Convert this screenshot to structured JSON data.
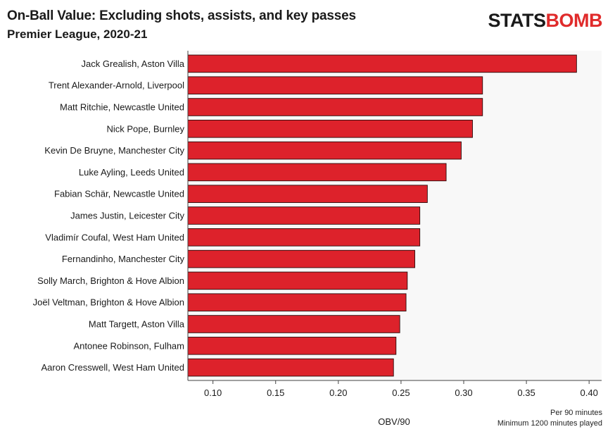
{
  "header": {
    "title": "On-Ball Value: Excluding shots, assists, and key passes",
    "subtitle": "Premier League, 2020-21",
    "logo_part1": "STATS",
    "logo_part2": "BOMB"
  },
  "footer": {
    "note_line1": "Per 90 minutes",
    "note_line2": "Minimum 1200 minutes played"
  },
  "colors": {
    "bar": "#dd222b",
    "bar_stroke": "#2a0a0a",
    "plot_bg": "#f8f8f8",
    "brand_red": "#e02b2b"
  },
  "chart_data": {
    "type": "bar",
    "orientation": "horizontal",
    "xlabel": "OBV/90",
    "ylabel": "",
    "xlim": [
      0.08,
      0.41
    ],
    "xticks": [
      0.1,
      0.15,
      0.2,
      0.25,
      0.3,
      0.35,
      0.4
    ],
    "xtick_labels": [
      "0.10",
      "0.15",
      "0.20",
      "0.25",
      "0.30",
      "0.35",
      "0.40"
    ],
    "grid": false,
    "categories": [
      "Jack Grealish, Aston Villa",
      "Trent Alexander-Arnold, Liverpool",
      "Matt Ritchie, Newcastle United",
      "Nick Pope, Burnley",
      "Kevin De Bruyne, Manchester City",
      "Luke Ayling, Leeds United",
      "Fabian Schär, Newcastle United",
      "James Justin, Leicester City",
      "Vladimír Coufal, West Ham United",
      "Fernandinho, Manchester City",
      "Solly March, Brighton & Hove Albion",
      "Joël Veltman, Brighton & Hove Albion",
      "Matt Targett, Aston Villa",
      "Antonee Robinson, Fulham",
      "Aaron Cresswell, West Ham United"
    ],
    "values": [
      0.39,
      0.315,
      0.315,
      0.307,
      0.298,
      0.286,
      0.271,
      0.265,
      0.265,
      0.261,
      0.255,
      0.254,
      0.249,
      0.246,
      0.244
    ]
  }
}
